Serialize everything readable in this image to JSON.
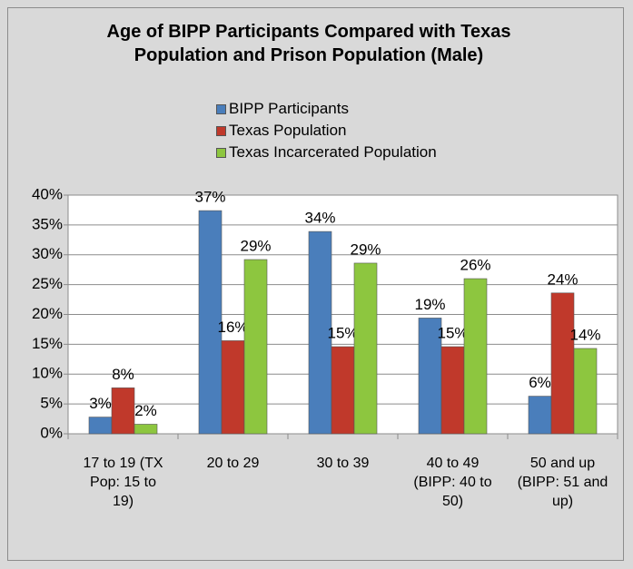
{
  "chart_data": {
    "type": "bar",
    "title": "Age of BIPP Participants Compared with Texas Population and Prison Population (Male)",
    "categories": [
      "17 to 19 (TX Pop: 15 to 19)",
      "20 to 29",
      "30 to 39",
      "40 to 49 (BIPP: 40 to 50)",
      "50 and up (BIPP: 51 and up)"
    ],
    "series": [
      {
        "name": "BIPP Participants",
        "color": "#4a7ebb",
        "values": [
          2.8,
          37.4,
          33.9,
          19.4,
          6.3
        ],
        "value_labels": [
          "3%",
          "37%",
          "34%",
          "19%",
          "6%"
        ]
      },
      {
        "name": "Texas Population",
        "color": "#c0392b",
        "values": [
          7.7,
          15.6,
          14.6,
          14.6,
          23.6
        ],
        "value_labels": [
          "8%",
          "16%",
          "15%",
          "15%",
          "24%"
        ]
      },
      {
        "name": "Texas Incarcerated Population",
        "color": "#8dc63f",
        "values": [
          1.6,
          29.2,
          28.6,
          26.0,
          14.3
        ],
        "value_labels": [
          "2%",
          "29%",
          "29%",
          "26%",
          "14%"
        ]
      }
    ],
    "ylim": [
      0,
      40
    ],
    "yticks": [
      {
        "value": 0,
        "label": "0%"
      },
      {
        "value": 5,
        "label": "5%"
      },
      {
        "value": 10,
        "label": "10%"
      },
      {
        "value": 15,
        "label": "15%"
      },
      {
        "value": 20,
        "label": "20%"
      },
      {
        "value": 25,
        "label": "25%"
      },
      {
        "value": 30,
        "label": "30%"
      },
      {
        "value": 35,
        "label": "35%"
      },
      {
        "value": 40,
        "label": "40%"
      }
    ],
    "grid": true,
    "legend": "top"
  }
}
